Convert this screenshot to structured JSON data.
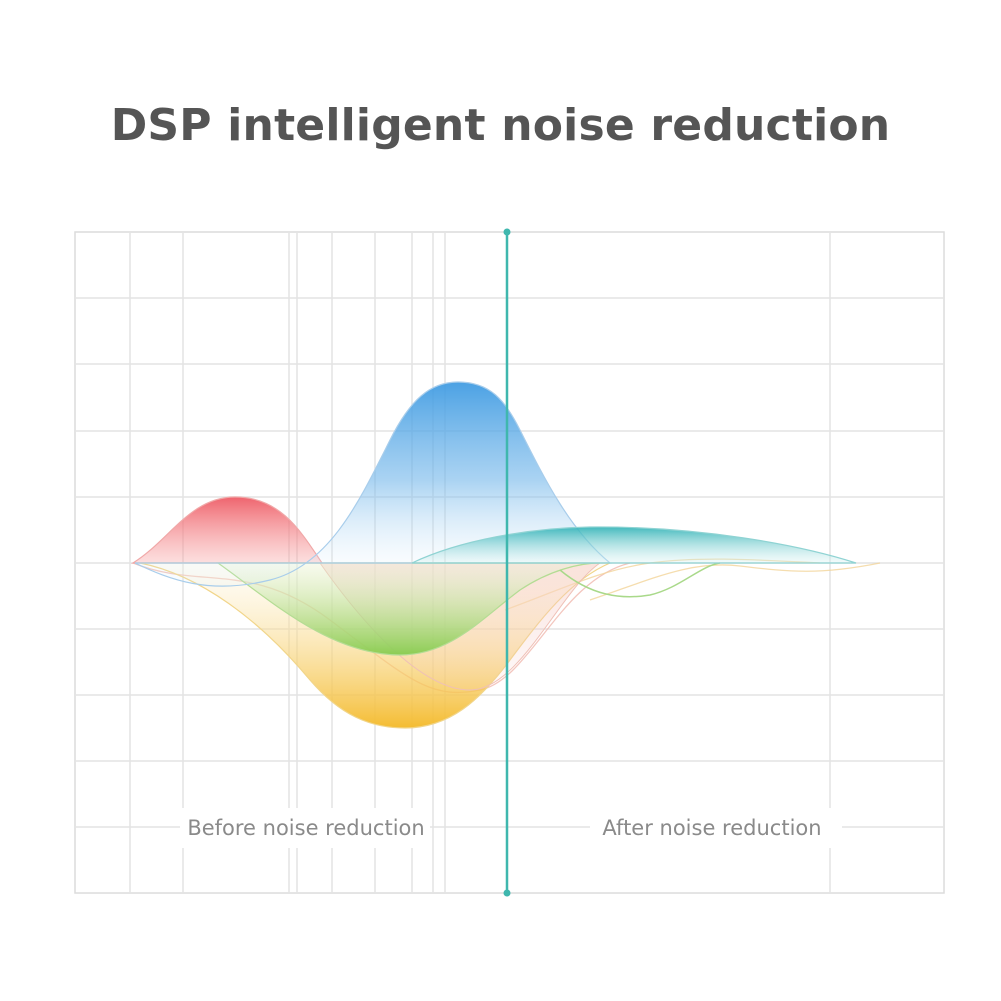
{
  "title": "DSP intelligent noise reduction",
  "labels": {
    "before": "Before noise reduction",
    "after": "After noise reduction"
  },
  "colors": {
    "red": "#f07878",
    "blue": "#4aa2e3",
    "teal": "#3db8bf",
    "green": "#8fd46a",
    "yellow": "#f5c246",
    "divider": "#3fb7ae",
    "grid": "#e3e3e3",
    "text": "#555555"
  }
}
